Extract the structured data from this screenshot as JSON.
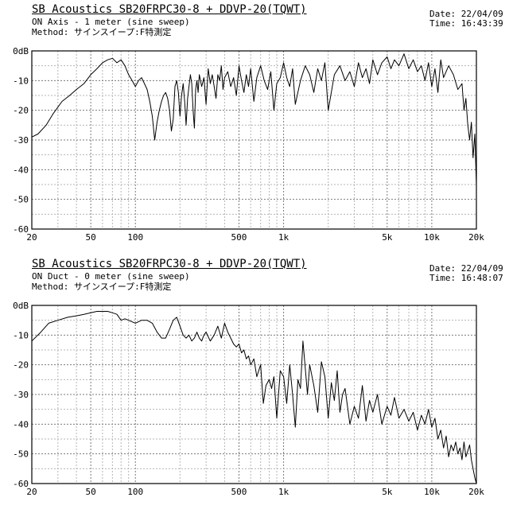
{
  "chart_data": [
    {
      "type": "line",
      "title": "SB Acoustics SB20FRPC30-8 + DDVP-20(TQWT)",
      "subtitle": [
        "ON Axis - 1 meter  (sine sweep)",
        "Method: サインスイープ:F特測定"
      ],
      "date_label": "Date: 22/04/09",
      "time_label": "Time: 16:43:39",
      "xscale": "log",
      "xlim": [
        20,
        20000
      ],
      "ylim": [
        -60,
        0
      ],
      "grid": true,
      "x_ticks": [
        20,
        50,
        100,
        500,
        1000,
        5000,
        10000,
        20000
      ],
      "x_tick_labels": [
        "20",
        "50",
        "100",
        "500",
        "1k",
        "5k",
        "10k",
        "20k"
      ],
      "y_ticks": [
        0,
        -10,
        -20,
        -30,
        -40,
        -50,
        -60
      ],
      "y_tick_labels": [
        "0dB",
        "-10",
        "-20",
        "-30",
        "-40",
        "-50",
        "-60"
      ],
      "series": [
        {
          "x": [
            20,
            22,
            25,
            28,
            32,
            36,
            40,
            45,
            50,
            55,
            60,
            65,
            70,
            75,
            80,
            85,
            90,
            95,
            100,
            105,
            110,
            115,
            120,
            125,
            130,
            135,
            140,
            145,
            150,
            155,
            160,
            165,
            170,
            175,
            180,
            185,
            190,
            195,
            200,
            205,
            210,
            215,
            220,
            225,
            230,
            235,
            240,
            245,
            250,
            255,
            260,
            265,
            270,
            280,
            290,
            300,
            310,
            320,
            330,
            340,
            350,
            360,
            370,
            380,
            390,
            400,
            420,
            440,
            460,
            480,
            500,
            520,
            540,
            560,
            580,
            600,
            630,
            660,
            700,
            740,
            780,
            820,
            860,
            900,
            950,
            1000,
            1050,
            1100,
            1150,
            1200,
            1300,
            1400,
            1500,
            1600,
            1700,
            1800,
            1900,
            2000,
            2200,
            2400,
            2600,
            2800,
            3000,
            3200,
            3400,
            3600,
            3800,
            4000,
            4300,
            4600,
            5000,
            5300,
            5600,
            6000,
            6500,
            7000,
            7500,
            8000,
            8500,
            9000,
            9500,
            10000,
            10500,
            11000,
            11500,
            12000,
            13000,
            14000,
            15000,
            16000,
            16500,
            17000,
            17500,
            18000,
            18500,
            19000,
            19500,
            20000
          ],
          "y": [
            -29,
            -28,
            -25,
            -21,
            -17,
            -15,
            -13,
            -11,
            -8,
            -6,
            -4,
            -3,
            -2.5,
            -4,
            -3,
            -5,
            -8,
            -10,
            -12,
            -10,
            -9,
            -11,
            -13,
            -17,
            -22,
            -30,
            -24,
            -20,
            -17,
            -15,
            -14,
            -16,
            -20,
            -27,
            -23,
            -12,
            -10,
            -14,
            -22,
            -15,
            -11,
            -17,
            -25,
            -16,
            -12,
            -8,
            -11,
            -20,
            -26,
            -13,
            -10,
            -14,
            -8,
            -12,
            -9,
            -18,
            -6,
            -11,
            -8,
            -12,
            -16,
            -8,
            -10,
            -5,
            -13,
            -9,
            -7,
            -12,
            -9,
            -15,
            -5,
            -10,
            -14,
            -8,
            -12,
            -6,
            -17,
            -9,
            -5,
            -10,
            -13,
            -7,
            -20,
            -11,
            -9,
            -4,
            -9,
            -12,
            -6,
            -18,
            -10,
            -5,
            -8,
            -14,
            -6,
            -10,
            -4,
            -20,
            -8,
            -5,
            -10,
            -7,
            -12,
            -4,
            -9,
            -6,
            -11,
            -3,
            -8,
            -4,
            -2,
            -6,
            -3,
            -5,
            -1,
            -6,
            -3,
            -7,
            -5,
            -10,
            -4,
            -12,
            -6,
            -14,
            -3,
            -9,
            -5,
            -8,
            -13,
            -11,
            -20,
            -16,
            -25,
            -30,
            -24,
            -36,
            -28,
            -45
          ]
        }
      ]
    },
    {
      "type": "line",
      "title": "SB Acoustics SB20FRPC30-8 + DDVP-20(TQWT)",
      "subtitle": [
        "ON Duct - 0 meter  (sine sweep)",
        "Method: サインスイープ:F特測定"
      ],
      "date_label": "Date: 22/04/09",
      "time_label": "Time: 16:48:07",
      "xscale": "log",
      "xlim": [
        20,
        20000
      ],
      "ylim": [
        -60,
        0
      ],
      "grid": true,
      "x_ticks": [
        20,
        50,
        100,
        500,
        1000,
        5000,
        10000,
        20000
      ],
      "x_tick_labels": [
        "20",
        "50",
        "100",
        "500",
        "1k",
        "5k",
        "10k",
        "20k"
      ],
      "y_ticks": [
        0,
        -10,
        -20,
        -30,
        -40,
        -50,
        -60
      ],
      "y_tick_labels": [
        "0dB",
        "-10",
        "-20",
        "-30",
        "-40",
        "-50",
        "-60"
      ],
      "series": [
        {
          "x": [
            20,
            23,
            26,
            30,
            35,
            40,
            45,
            50,
            55,
            60,
            65,
            70,
            75,
            80,
            85,
            90,
            100,
            110,
            120,
            130,
            140,
            150,
            160,
            170,
            180,
            190,
            200,
            210,
            220,
            230,
            240,
            250,
            260,
            270,
            280,
            290,
            300,
            320,
            340,
            360,
            380,
            400,
            420,
            440,
            460,
            480,
            500,
            520,
            540,
            560,
            580,
            600,
            630,
            660,
            700,
            730,
            760,
            800,
            830,
            860,
            900,
            950,
            1000,
            1050,
            1100,
            1150,
            1200,
            1250,
            1300,
            1350,
            1400,
            1450,
            1500,
            1600,
            1700,
            1800,
            1900,
            2000,
            2100,
            2200,
            2300,
            2400,
            2500,
            2600,
            2800,
            3000,
            3200,
            3400,
            3600,
            3800,
            4000,
            4300,
            4600,
            5000,
            5300,
            5600,
            6000,
            6500,
            7000,
            7500,
            8000,
            8500,
            9000,
            9500,
            10000,
            10500,
            11000,
            11500,
            12000,
            12500,
            13000,
            13500,
            14000,
            14500,
            15000,
            15500,
            16000,
            16500,
            17000,
            17500,
            18000,
            18500,
            19000,
            19500,
            20000
          ],
          "y": [
            -12,
            -9,
            -6,
            -5,
            -4,
            -3.5,
            -3,
            -2.5,
            -2,
            -2,
            -2,
            -2.5,
            -3,
            -5,
            -4.5,
            -5,
            -6,
            -5,
            -5,
            -6,
            -9,
            -11,
            -11,
            -8,
            -5,
            -4,
            -7,
            -10,
            -11,
            -10,
            -12,
            -11,
            -9,
            -11,
            -12,
            -10,
            -9,
            -12,
            -10,
            -7,
            -11,
            -6,
            -9,
            -11,
            -13,
            -14,
            -13,
            -16,
            -15,
            -18,
            -17,
            -20,
            -18,
            -24,
            -20,
            -33,
            -27,
            -25,
            -28,
            -24,
            -38,
            -22,
            -24,
            -33,
            -20,
            -30,
            -41,
            -25,
            -28,
            -12,
            -21,
            -30,
            -20,
            -27,
            -36,
            -19,
            -24,
            -38,
            -26,
            -32,
            -22,
            -36,
            -30,
            -28,
            -40,
            -34,
            -38,
            -27,
            -39,
            -32,
            -36,
            -30,
            -40,
            -34,
            -37,
            -31,
            -38,
            -35,
            -39,
            -36,
            -42,
            -37,
            -40,
            -35,
            -41,
            -38,
            -45,
            -42,
            -48,
            -44,
            -51,
            -47,
            -49,
            -46,
            -50,
            -48,
            -52,
            -46,
            -51,
            -49,
            -47,
            -52,
            -55,
            -58,
            -60
          ]
        }
      ]
    }
  ]
}
